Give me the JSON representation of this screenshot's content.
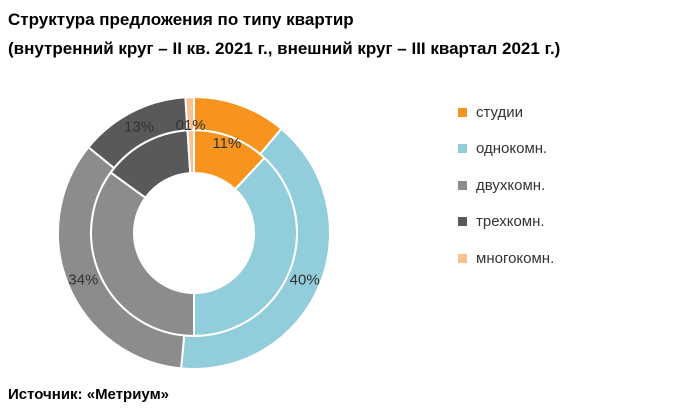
{
  "title": {
    "line1": "Структура предложения по типу квартир",
    "line2": "(внутренний круг – II кв. 2021 г., внешний круг – III квартал 2021 г.)"
  },
  "source": "Источник: «Метриум»",
  "chart_data": {
    "type": "donut",
    "categories": [
      "студии",
      "однокомн.",
      "двухкомн.",
      "трехкомн.",
      "многокомн."
    ],
    "colors": [
      "#F7941D",
      "#92CDDC",
      "#8C8C8C",
      "#595959",
      "#FAC090"
    ],
    "series": [
      {
        "ring": "inner",
        "values": [
          12,
          38,
          35,
          14,
          1
        ]
      },
      {
        "ring": "outer",
        "values": [
          11,
          40,
          34,
          13,
          1
        ]
      }
    ],
    "data_labels": [
      {
        "text": "11%"
      },
      {
        "text": "40%"
      },
      {
        "text": "34%"
      },
      {
        "text": "13%"
      },
      {
        "text": "01%"
      }
    ],
    "legend_position": "right"
  }
}
